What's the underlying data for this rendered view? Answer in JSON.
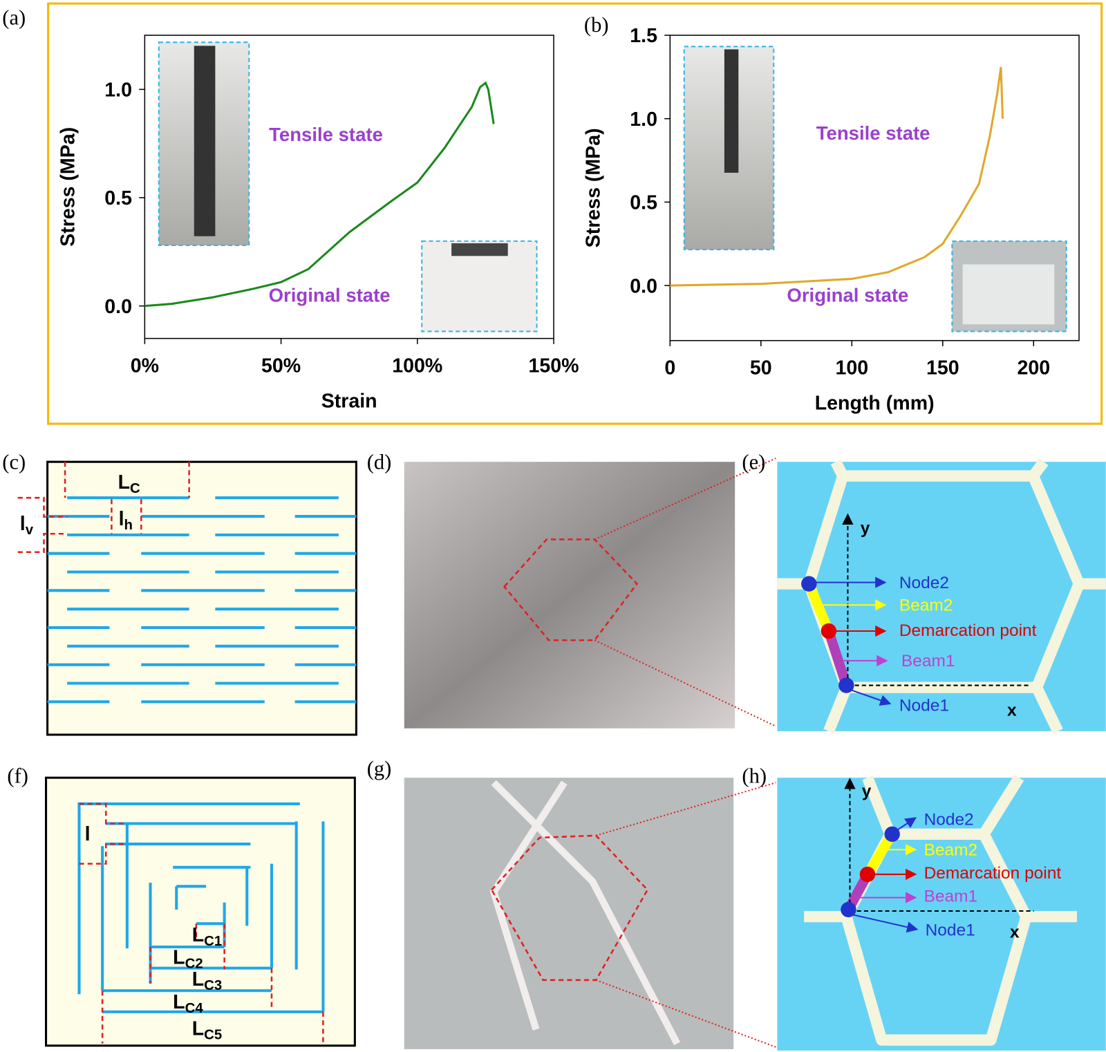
{
  "panel_labels": [
    "(a)",
    "(b)",
    "(c)",
    "(d)",
    "(e)",
    "(f)",
    "(g)",
    "(h)"
  ],
  "chart_data": [
    {
      "type": "line",
      "color": "#1a8a1a",
      "x": [
        0,
        10,
        25,
        40,
        50,
        60,
        75,
        90,
        100,
        110,
        120,
        123,
        125,
        126,
        128
      ],
      "values": [
        0,
        0.01,
        0.04,
        0.08,
        0.11,
        0.17,
        0.34,
        0.48,
        0.57,
        0.73,
        0.92,
        1.01,
        1.03,
        1.0,
        0.84
      ],
      "xlim": [
        0,
        150
      ],
      "xticks": [
        {
          "value": 0,
          "label": "0%"
        },
        {
          "value": 50,
          "label": "50%"
        },
        {
          "value": 100,
          "label": "100%"
        },
        {
          "value": 150,
          "label": "150%"
        }
      ],
      "ylim": [
        -0.15,
        1.25
      ],
      "yticks": [
        {
          "value": 0,
          "label": "0.0"
        },
        {
          "value": 0.5,
          "label": "0.5"
        },
        {
          "value": 1,
          "label": "1.0"
        }
      ],
      "xlabel": "Strain",
      "ylabel": "Stress  (MPa)",
      "annotations": [
        "Tensile state",
        "Original state"
      ]
    },
    {
      "type": "line",
      "color": "#e0a82a",
      "x": [
        0,
        50,
        100,
        120,
        140,
        150,
        160,
        170,
        176,
        180,
        182,
        183
      ],
      "values": [
        0,
        0.01,
        0.04,
        0.08,
        0.17,
        0.25,
        0.42,
        0.61,
        0.9,
        1.15,
        1.31,
        1.0
      ],
      "xlim": [
        0,
        225
      ],
      "xticks": [
        0,
        50,
        100,
        150,
        200
      ],
      "ylim": [
        -0.33,
        1.5
      ],
      "yticks": [
        {
          "value": 0,
          "label": "0.0"
        },
        {
          "value": 0.5,
          "label": "0.5"
        },
        {
          "value": 1,
          "label": "1.0"
        },
        {
          "value": 1.5,
          "label": "1.5"
        }
      ],
      "xlabel": "Length (mm)",
      "ylabel": "Stress (MPa)",
      "annotations": [
        "Tensile state",
        "Original state"
      ]
    }
  ],
  "diagram_c": {
    "labels": [
      {
        "main": "L",
        "sub": "C"
      },
      {
        "main": "l",
        "sub": "h"
      },
      {
        "main": "l",
        "sub": "v"
      }
    ]
  },
  "diagram_f": {
    "labels": [
      {
        "main": "l"
      },
      {
        "main": "L",
        "sub": "C1"
      },
      {
        "main": "L",
        "sub": "C2"
      },
      {
        "main": "L",
        "sub": "C3"
      },
      {
        "main": "L",
        "sub": "C4"
      },
      {
        "main": "L",
        "sub": "C5"
      }
    ]
  },
  "diagram_e": {
    "labels": [
      "Node2",
      "Beam2",
      "Demarcation point",
      "Beam1",
      "Node1",
      "x",
      "y"
    ]
  },
  "diagram_h": {
    "labels": [
      "Node2",
      "Beam2",
      "Demarcation point",
      "Beam1",
      "Node1",
      "x",
      "y"
    ]
  }
}
